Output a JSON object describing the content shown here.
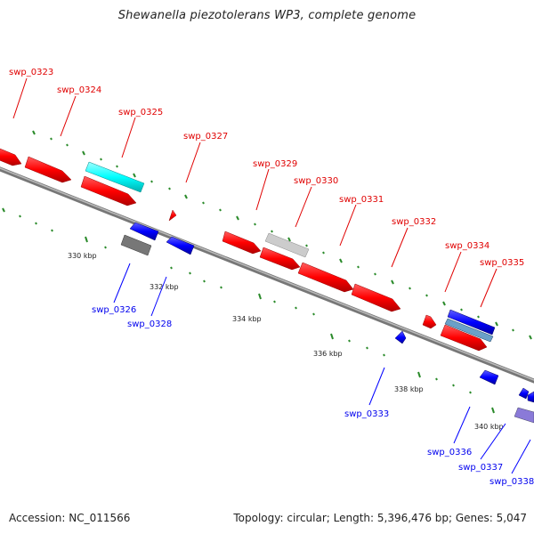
{
  "title": "Shewanella piezotolerans WP3, complete genome",
  "footer": {
    "accession": "Accession: NC_011566",
    "summary": "Topology: circular; Length: 5,396,476 bp; Genes: 5,047"
  },
  "colors": {
    "forward": "#ff0000",
    "reverse": "#0000ff",
    "backbone": "#888888",
    "tick": "#2a8a2a"
  },
  "ticks": [
    "330 kbp",
    "332 kbp",
    "334 kbp",
    "336 kbp",
    "338 kbp",
    "340 kbp"
  ],
  "genes_forward": [
    {
      "label": "swp_0323",
      "color": "#ff0000"
    },
    {
      "label": "swp_0324",
      "color": "#ff0000"
    },
    {
      "label": "swp_0325",
      "color": "#00ffff"
    },
    {
      "label": "swp_0327",
      "color": "#ff0000"
    },
    {
      "label": "swp_0329",
      "color": "#ff0000"
    },
    {
      "label": "swp_0330",
      "color": "#ff0000"
    },
    {
      "label": "swp_0331",
      "color": "#ff0000"
    },
    {
      "label": "swp_0332",
      "color": "#ff0000"
    },
    {
      "label": "swp_0334",
      "color": "#ff0000"
    },
    {
      "label": "swp_0335",
      "color": "#ff0000"
    }
  ],
  "genes_reverse": [
    {
      "label": "swp_0326",
      "color": "#0000ff"
    },
    {
      "label": "swp_0328",
      "color": "#0000ff"
    },
    {
      "label": "swp_0333",
      "color": "#0000ff"
    },
    {
      "label": "swp_0336",
      "color": "#0000ff"
    },
    {
      "label": "swp_0337",
      "color": "#0000ff"
    },
    {
      "label": "swp_0338",
      "color": "#0000ff"
    }
  ]
}
